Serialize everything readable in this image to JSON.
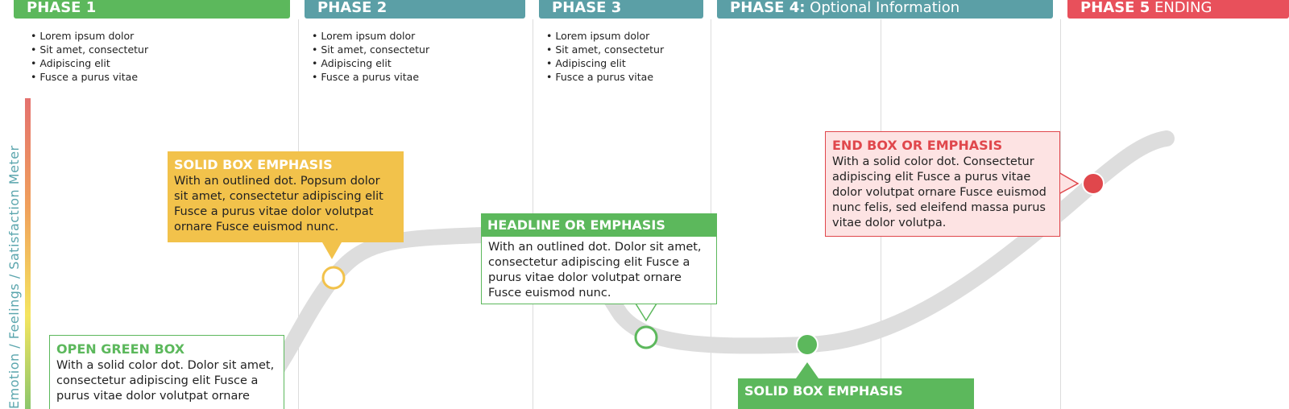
{
  "phases": [
    {
      "name": "PHASE 1",
      "sub": "",
      "color": "#5cb85c"
    },
    {
      "name": "PHASE 2",
      "sub": "",
      "color": "#5b9fa6"
    },
    {
      "name": "PHASE 3",
      "sub": "",
      "color": "#5b9fa6"
    },
    {
      "name": "PHASE 4:",
      "sub": " Optional Information",
      "color": "#5b9fa6"
    },
    {
      "name": "PHASE 5",
      "sub": " ENDING",
      "color": "#e8505b"
    }
  ],
  "bullets": {
    "phase1": [
      "Lorem ipsum dolor",
      "Sit amet, consectetur",
      "Adipiscing elit",
      "Fusce a purus vitae"
    ],
    "phase2": [
      "Lorem ipsum dolor",
      "Sit amet, consectetur",
      "Adipiscing elit",
      "Fusce a purus vitae"
    ],
    "phase3": [
      "Lorem ipsum dolor",
      "Sit amet, consectetur",
      "Adipiscing elit",
      "Fusce a purus vitae"
    ]
  },
  "meter": {
    "label": "Emotion / Feelings / Satisfaction Meter",
    "gradient": [
      "#e4716e",
      "#f0a05c",
      "#f5e560",
      "#8bc66c"
    ]
  },
  "callouts": {
    "solid_yellow": {
      "title": "SOLID BOX EMPHASIS",
      "body": "With an outlined dot. Popsum dolor sit amet, consectetur adipiscing elit Fusce a purus vitae dolor volutpat ornare Fusce euismod nunc."
    },
    "headline": {
      "title": "HEADLINE OR EMPHASIS",
      "body": "With an outlined dot. Dolor sit amet, consectetur adipiscing elit Fusce a purus vitae dolor volutpat ornare Fusce euismod nunc."
    },
    "end_box": {
      "title": "END BOX OR EMPHASIS",
      "body": "With a solid color dot. Consectetur adipiscing elit Fusce a purus vitae dolor volutpat ornare Fusce euismod nunc felis, sed eleifend massa purus vitae dolor volutpa."
    },
    "open_green": {
      "title": "OPEN GREEN BOX",
      "body": "With a solid color dot. Dolor sit amet, consectetur adipiscing elit Fusce a purus vitae dolor volutpat ornare"
    },
    "solid_green": {
      "title": "SOLID BOX EMPHASIS"
    }
  },
  "colors": {
    "curve": "#dddddd",
    "yellow": "#f2c24b",
    "green": "#5cb85c",
    "red": "#e0474c",
    "teal": "#5b9fa6"
  }
}
